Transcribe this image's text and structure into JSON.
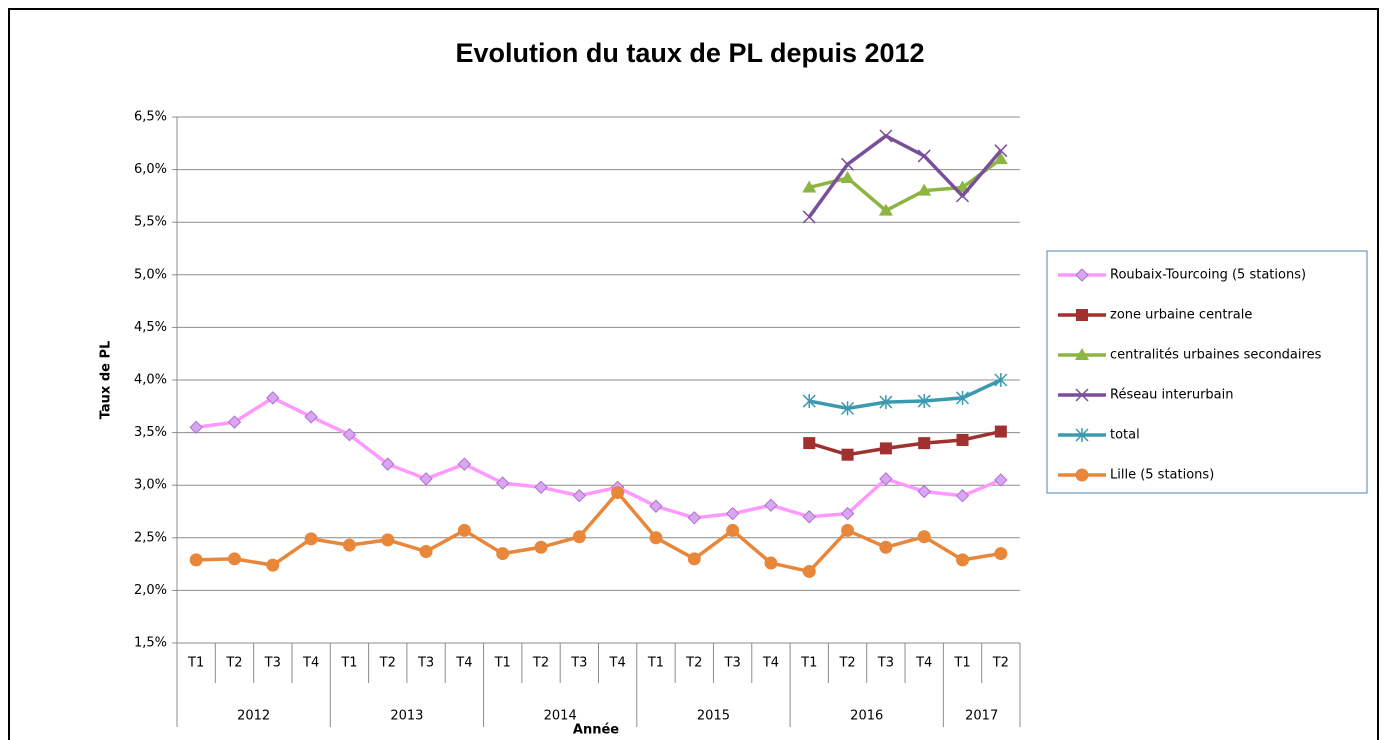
{
  "chart_data": {
    "type": "line",
    "title": "Evolution du taux de PL depuis 2012",
    "y_label": "Taux de PL",
    "x_label": "Année",
    "categories": [
      "T1",
      "T2",
      "T3",
      "T4",
      "T1",
      "T2",
      "T3",
      "T4",
      "T1",
      "T2",
      "T3",
      "T4",
      "T1",
      "T2",
      "T3",
      "T4",
      "T1",
      "T2",
      "T3",
      "T4",
      "T1",
      "T2"
    ],
    "groups": [
      {
        "label": "2012",
        "count": 4
      },
      {
        "label": "2013",
        "count": 4
      },
      {
        "label": "2014",
        "count": 4
      },
      {
        "label": "2015",
        "count": 4
      },
      {
        "label": "2016",
        "count": 4
      },
      {
        "label": "2017",
        "count": 2
      }
    ],
    "ylim": [
      1.5,
      6.5
    ],
    "yticks": [
      {
        "value": 1.5,
        "label": "1,5%"
      },
      {
        "value": 2.0,
        "label": "2,0%"
      },
      {
        "value": 2.5,
        "label": "2,5%"
      },
      {
        "value": 3.0,
        "label": "3,0%"
      },
      {
        "value": 3.5,
        "label": "3,5%"
      },
      {
        "value": 4.0,
        "label": "4,0%"
      },
      {
        "value": 4.5,
        "label": "4,5%"
      },
      {
        "value": 5.0,
        "label": "5,0%"
      },
      {
        "value": 5.5,
        "label": "5,5%"
      },
      {
        "value": 6.0,
        "label": "6,0%"
      },
      {
        "value": 6.5,
        "label": "6,5%"
      }
    ],
    "grid": true,
    "legend": "right",
    "series": [
      {
        "name": "Roubaix-Tourcoing (5 stations)",
        "color": "#ff99ff",
        "marker": "diamond",
        "values": [
          3.55,
          3.6,
          3.83,
          3.65,
          3.48,
          3.2,
          3.06,
          3.2,
          3.02,
          2.98,
          2.9,
          2.98,
          2.8,
          2.69,
          2.73,
          2.81,
          2.7,
          2.73,
          3.06,
          2.94,
          2.9,
          3.05
        ]
      },
      {
        "name": "zone urbaine centrale",
        "color": "#a0312f",
        "marker": "square",
        "values": [
          null,
          null,
          null,
          null,
          null,
          null,
          null,
          null,
          null,
          null,
          null,
          null,
          null,
          null,
          null,
          null,
          3.4,
          3.29,
          3.35,
          3.4,
          3.43,
          3.51
        ]
      },
      {
        "name": "centralités urbaines secondaires",
        "color": "#8db542",
        "marker": "triangle",
        "values": [
          null,
          null,
          null,
          null,
          null,
          null,
          null,
          null,
          null,
          null,
          null,
          null,
          null,
          null,
          null,
          null,
          5.83,
          5.92,
          5.61,
          5.8,
          5.83,
          6.1
        ]
      },
      {
        "name": "Réseau interurbain",
        "color": "#7a4f9a",
        "marker": "x",
        "values": [
          null,
          null,
          null,
          null,
          null,
          null,
          null,
          null,
          null,
          null,
          null,
          null,
          null,
          null,
          null,
          null,
          5.55,
          6.05,
          6.32,
          6.13,
          5.75,
          6.18
        ]
      },
      {
        "name": "total",
        "color": "#3c9ab0",
        "marker": "star",
        "values": [
          null,
          null,
          null,
          null,
          null,
          null,
          null,
          null,
          null,
          null,
          null,
          null,
          null,
          null,
          null,
          null,
          3.8,
          3.73,
          3.79,
          3.8,
          3.83,
          4.0
        ]
      },
      {
        "name": "Lille (5 stations)",
        "color": "#e8863a",
        "marker": "circle",
        "values": [
          2.29,
          2.3,
          2.24,
          2.49,
          2.43,
          2.48,
          2.37,
          2.57,
          2.35,
          2.41,
          2.51,
          2.93,
          2.5,
          2.3,
          2.57,
          2.26,
          2.18,
          2.57,
          2.41,
          2.51,
          2.29,
          2.35
        ]
      }
    ]
  }
}
